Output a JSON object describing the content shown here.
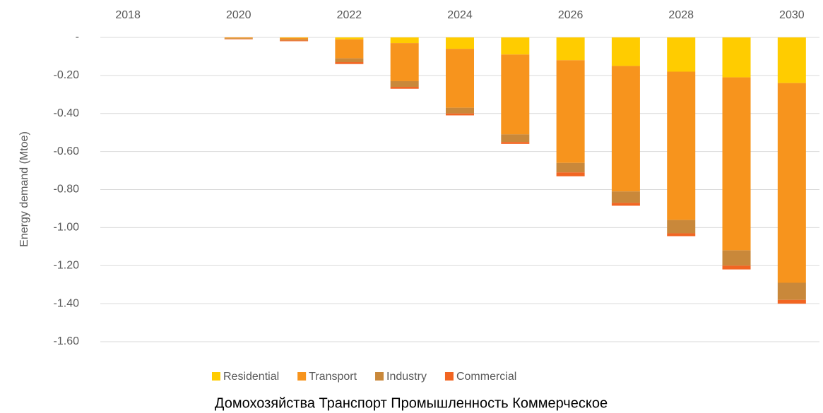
{
  "chart_data": {
    "type": "stacked-bar",
    "y_label": "Energy demand (Mtoe)",
    "caption": "Домохозяйства Транспорт Промышленность Коммерческое",
    "categories": [
      "2018",
      null,
      "2020",
      null,
      "2022",
      null,
      "2024",
      null,
      "2026",
      null,
      "2028",
      null,
      "2030"
    ],
    "series": [
      {
        "name": "Residential",
        "color": "#ffcc00",
        "values": [
          0,
          0,
          0,
          -0.002,
          -0.01,
          -0.03,
          -0.06,
          -0.09,
          -0.12,
          -0.15,
          -0.18,
          -0.21,
          -0.24
        ]
      },
      {
        "name": "Transport",
        "color": "#f7941d",
        "values": [
          0,
          0,
          -0.005,
          -0.008,
          -0.1,
          -0.2,
          -0.31,
          -0.42,
          -0.54,
          -0.66,
          -0.78,
          -0.91,
          -1.05
        ]
      },
      {
        "name": "Industry",
        "color": "#c9883a",
        "values": [
          0,
          0,
          -0.003,
          -0.006,
          -0.02,
          -0.03,
          -0.03,
          -0.04,
          -0.05,
          -0.06,
          -0.07,
          -0.08,
          -0.09
        ]
      },
      {
        "name": "Commercial",
        "color": "#f26522",
        "values": [
          0,
          0,
          -0.002,
          -0.004,
          -0.01,
          -0.01,
          -0.01,
          -0.01,
          -0.02,
          -0.015,
          -0.015,
          -0.02,
          -0.02
        ]
      }
    ],
    "ylim": [
      -1.6,
      0
    ],
    "yticks": [
      {
        "value": 0,
        "label": "-"
      },
      {
        "value": -0.2,
        "label": "-0.20"
      },
      {
        "value": -0.4,
        "label": "-0.40"
      },
      {
        "value": -0.6,
        "label": "-0.60"
      },
      {
        "value": -0.8,
        "label": "-0.80"
      },
      {
        "value": -1.0,
        "label": "-1.00"
      },
      {
        "value": -1.2,
        "label": "-1.20"
      },
      {
        "value": -1.4,
        "label": "-1.40"
      },
      {
        "value": -1.6,
        "label": "-1.60"
      }
    ],
    "grid": true,
    "legend": "bottom"
  }
}
